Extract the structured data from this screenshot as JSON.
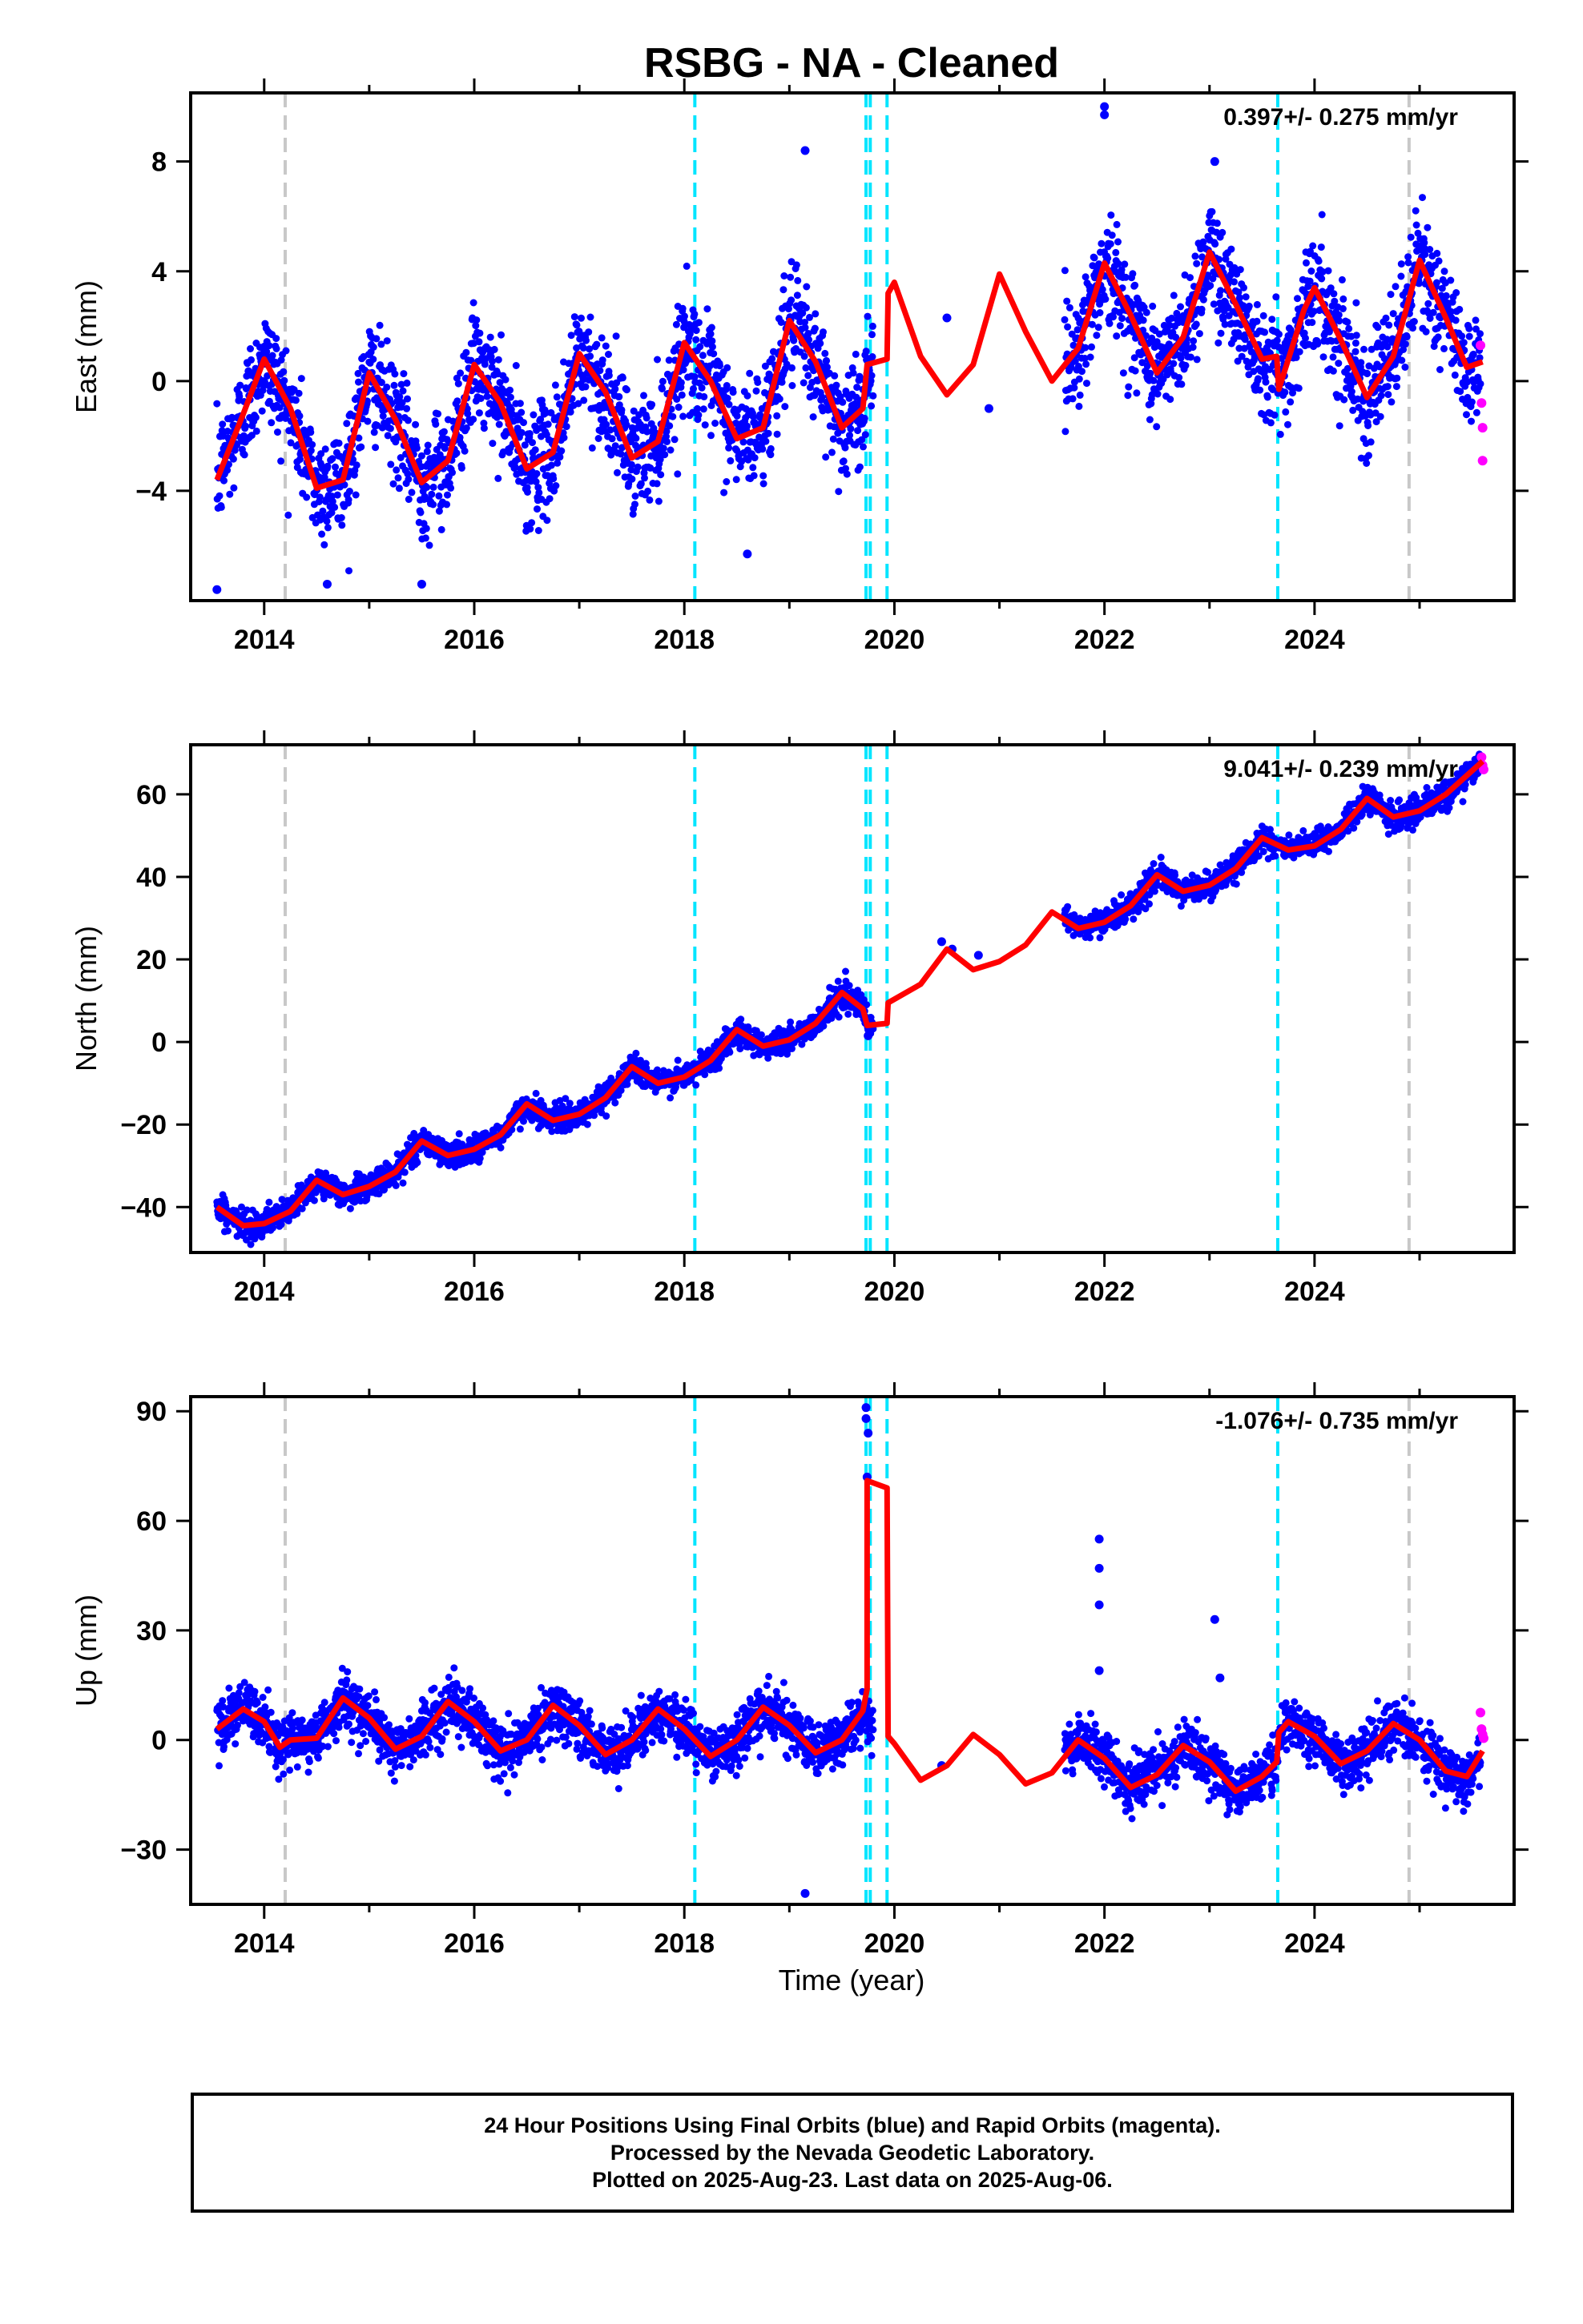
{
  "title": "RSBG  - NA - Cleaned",
  "xlabel": "Time (year)",
  "x_ticks": [
    2014,
    2016,
    2018,
    2020,
    2022,
    2024
  ],
  "colors": {
    "final_orbits": "#0000ff",
    "rapid_orbits": "#ff00ff",
    "model": "#ff0000",
    "equipment_change": "#00e5ff",
    "earthquake": "#c8c8c8"
  },
  "footer": {
    "line1": "24 Hour Positions Using Final Orbits (blue) and Rapid Orbits (magenta).",
    "line2": "Processed by the Nevada Geodetic Laboratory.",
    "line3": "Plotted on 2025-Aug-23. Last data on 2025-Aug-06."
  },
  "chart_data": [
    {
      "type": "scatter",
      "component": "East",
      "ylabel": "East (mm)",
      "rate_label": "0.397+/- 0.275 mm/yr",
      "xlim": [
        2013.3,
        2025.9
      ],
      "ylim": [
        -8,
        10.5
      ],
      "y_ticks": [
        -4,
        0,
        4,
        8
      ],
      "vlines_gray": [
        2014.2,
        2024.9
      ],
      "vlines_cyan": [
        2018.1,
        2019.73,
        2019.77,
        2019.93,
        2023.65
      ],
      "model": [
        [
          2013.55,
          -3.6
        ],
        [
          2013.8,
          -1.2
        ],
        [
          2014.0,
          0.8
        ],
        [
          2014.25,
          -1.0
        ],
        [
          2014.5,
          -3.9
        ],
        [
          2014.75,
          -3.6
        ],
        [
          2015.0,
          0.3
        ],
        [
          2015.25,
          -1.4
        ],
        [
          2015.5,
          -3.7
        ],
        [
          2015.75,
          -2.9
        ],
        [
          2016.0,
          0.6
        ],
        [
          2016.25,
          -0.8
        ],
        [
          2016.5,
          -3.2
        ],
        [
          2016.75,
          -2.6
        ],
        [
          2017.0,
          1.0
        ],
        [
          2017.25,
          -0.4
        ],
        [
          2017.5,
          -2.8
        ],
        [
          2017.75,
          -2.2
        ],
        [
          2018.0,
          1.4
        ],
        [
          2018.25,
          0.0
        ],
        [
          2018.5,
          -2.1
        ],
        [
          2018.75,
          -1.7
        ],
        [
          2019.0,
          2.2
        ],
        [
          2019.25,
          0.7
        ],
        [
          2019.5,
          -1.7
        ],
        [
          2019.7,
          -1.0
        ],
        [
          2019.74,
          0.6
        ],
        [
          2019.93,
          0.8
        ],
        [
          2019.94,
          3.2
        ],
        [
          2020.0,
          3.6
        ],
        [
          2020.25,
          0.9
        ],
        [
          2020.5,
          -0.5
        ],
        [
          2020.75,
          0.6
        ],
        [
          2021.0,
          3.9
        ],
        [
          2021.25,
          1.8
        ],
        [
          2021.5,
          0.0
        ],
        [
          2021.75,
          1.2
        ],
        [
          2022.0,
          4.3
        ],
        [
          2022.25,
          2.4
        ],
        [
          2022.5,
          0.3
        ],
        [
          2022.75,
          1.6
        ],
        [
          2023.0,
          4.7
        ],
        [
          2023.25,
          2.8
        ],
        [
          2023.5,
          0.8
        ],
        [
          2023.64,
          0.9
        ],
        [
          2023.66,
          -0.3
        ],
        [
          2023.9,
          2.6
        ],
        [
          2024.0,
          3.4
        ],
        [
          2024.25,
          1.5
        ],
        [
          2024.5,
          -0.6
        ],
        [
          2024.75,
          0.9
        ],
        [
          2025.0,
          4.4
        ],
        [
          2025.25,
          2.3
        ],
        [
          2025.45,
          0.5
        ],
        [
          2025.6,
          0.7
        ]
      ],
      "rapid": [
        [
          2025.58,
          1.3
        ],
        [
          2025.59,
          -0.8
        ],
        [
          2025.6,
          -1.7
        ],
        [
          2025.6,
          -2.9
        ]
      ],
      "outliers": [
        [
          2013.55,
          -7.6
        ],
        [
          2014.6,
          -7.4
        ],
        [
          2015.5,
          -7.4
        ],
        [
          2019.15,
          8.4
        ],
        [
          2020.5,
          2.3
        ],
        [
          2020.9,
          -1.0
        ],
        [
          2022.0,
          10.0
        ],
        [
          2022.0,
          9.7
        ],
        [
          2023.05,
          8.0
        ],
        [
          2018.6,
          -6.3
        ]
      ]
    },
    {
      "type": "scatter",
      "component": "North",
      "ylabel": "North (mm)",
      "rate_label": "9.041+/- 0.239 mm/yr",
      "xlim": [
        2013.3,
        2025.9
      ],
      "ylim": [
        -51,
        72
      ],
      "y_ticks": [
        -40,
        -20,
        0,
        20,
        40,
        60
      ],
      "vlines_gray": [
        2014.2,
        2024.9
      ],
      "vlines_cyan": [
        2018.1,
        2019.73,
        2019.77,
        2019.93,
        2023.65
      ],
      "model": [
        [
          2013.55,
          -40.0
        ],
        [
          2013.8,
          -44.5
        ],
        [
          2014.0,
          -44.0
        ],
        [
          2014.25,
          -41.0
        ],
        [
          2014.5,
          -33.5
        ],
        [
          2014.75,
          -37.0
        ],
        [
          2015.0,
          -35.0
        ],
        [
          2015.25,
          -31.5
        ],
        [
          2015.5,
          -24.0
        ],
        [
          2015.75,
          -27.5
        ],
        [
          2016.0,
          -26.0
        ],
        [
          2016.25,
          -22.5
        ],
        [
          2016.5,
          -15.0
        ],
        [
          2016.75,
          -19.0
        ],
        [
          2017.0,
          -17.5
        ],
        [
          2017.25,
          -13.5
        ],
        [
          2017.5,
          -6.0
        ],
        [
          2017.75,
          -10.0
        ],
        [
          2018.0,
          -8.5
        ],
        [
          2018.25,
          -4.5
        ],
        [
          2018.5,
          3.0
        ],
        [
          2018.75,
          -1.0
        ],
        [
          2019.0,
          0.5
        ],
        [
          2019.25,
          4.5
        ],
        [
          2019.5,
          12.0
        ],
        [
          2019.7,
          8.0
        ],
        [
          2019.74,
          4.0
        ],
        [
          2019.93,
          4.5
        ],
        [
          2019.94,
          9.5
        ],
        [
          2020.25,
          14.0
        ],
        [
          2020.5,
          22.5
        ],
        [
          2020.75,
          17.5
        ],
        [
          2021.0,
          19.5
        ],
        [
          2021.25,
          23.5
        ],
        [
          2021.5,
          31.5
        ],
        [
          2021.75,
          27.5
        ],
        [
          2022.0,
          29.0
        ],
        [
          2022.25,
          33.0
        ],
        [
          2022.5,
          40.5
        ],
        [
          2022.75,
          36.5
        ],
        [
          2023.0,
          38.0
        ],
        [
          2023.25,
          42.0
        ],
        [
          2023.5,
          49.5
        ],
        [
          2023.75,
          46.5
        ],
        [
          2024.0,
          47.5
        ],
        [
          2024.25,
          51.5
        ],
        [
          2024.5,
          59.0
        ],
        [
          2024.75,
          54.5
        ],
        [
          2025.0,
          56.0
        ],
        [
          2025.25,
          60.0
        ],
        [
          2025.6,
          68.0
        ]
      ],
      "rapid": [
        [
          2025.59,
          69.0
        ],
        [
          2025.6,
          67.0
        ],
        [
          2025.61,
          66.0
        ]
      ],
      "outliers": [
        [
          2020.45,
          24.3
        ],
        [
          2020.55,
          22.5
        ],
        [
          2020.8,
          21.0
        ],
        [
          2019.75,
          1.5
        ]
      ]
    },
    {
      "type": "scatter",
      "component": "Up",
      "ylabel": "Up (mm)",
      "rate_label": "-1.076+/- 0.735 mm/yr",
      "xlim": [
        2013.3,
        2025.9
      ],
      "ylim": [
        -45,
        94
      ],
      "y_ticks": [
        -30,
        0,
        30,
        60,
        90
      ],
      "vlines_gray": [
        2014.2,
        2024.9
      ],
      "vlines_cyan": [
        2018.1,
        2019.73,
        2019.77,
        2019.93,
        2023.65
      ],
      "model": [
        [
          2013.55,
          3.0
        ],
        [
          2013.8,
          8.5
        ],
        [
          2014.0,
          5.0
        ],
        [
          2014.15,
          -2.0
        ],
        [
          2014.25,
          0.0
        ],
        [
          2014.5,
          0.5
        ],
        [
          2014.75,
          11.5
        ],
        [
          2015.0,
          6.0
        ],
        [
          2015.25,
          -2.5
        ],
        [
          2015.5,
          1.0
        ],
        [
          2015.75,
          10.5
        ],
        [
          2016.0,
          5.0
        ],
        [
          2016.25,
          -3.0
        ],
        [
          2016.5,
          0.0
        ],
        [
          2016.75,
          9.5
        ],
        [
          2017.0,
          4.0
        ],
        [
          2017.25,
          -4.0
        ],
        [
          2017.5,
          0.0
        ],
        [
          2017.75,
          8.5
        ],
        [
          2018.0,
          3.0
        ],
        [
          2018.25,
          -4.5
        ],
        [
          2018.5,
          0.0
        ],
        [
          2018.75,
          9.0
        ],
        [
          2019.0,
          4.0
        ],
        [
          2019.25,
          -3.5
        ],
        [
          2019.5,
          0.0
        ],
        [
          2019.7,
          8.0
        ],
        [
          2019.74,
          14.0
        ],
        [
          2019.74,
          71.0
        ],
        [
          2019.93,
          69.0
        ],
        [
          2019.94,
          1.0
        ],
        [
          2020.0,
          -1.0
        ],
        [
          2020.25,
          -11.0
        ],
        [
          2020.5,
          -7.0
        ],
        [
          2020.75,
          1.5
        ],
        [
          2021.0,
          -4.0
        ],
        [
          2021.25,
          -12.0
        ],
        [
          2021.5,
          -9.0
        ],
        [
          2021.75,
          0.0
        ],
        [
          2022.0,
          -5.0
        ],
        [
          2022.25,
          -13.0
        ],
        [
          2022.5,
          -9.5
        ],
        [
          2022.75,
          -1.5
        ],
        [
          2023.0,
          -6.0
        ],
        [
          2023.25,
          -14.0
        ],
        [
          2023.5,
          -10.0
        ],
        [
          2023.64,
          -6.0
        ],
        [
          2023.66,
          2.0
        ],
        [
          2023.75,
          5.0
        ],
        [
          2024.0,
          1.0
        ],
        [
          2024.25,
          -6.5
        ],
        [
          2024.5,
          -3.0
        ],
        [
          2024.75,
          4.5
        ],
        [
          2025.0,
          0.0
        ],
        [
          2025.25,
          -8.5
        ],
        [
          2025.45,
          -10.0
        ],
        [
          2025.6,
          -3.0
        ]
      ],
      "rapid": [
        [
          2025.58,
          7.5
        ],
        [
          2025.59,
          3.0
        ],
        [
          2025.6,
          1.5
        ],
        [
          2025.61,
          0.5
        ]
      ],
      "outliers": [
        [
          2019.73,
          91.0
        ],
        [
          2019.73,
          88.0
        ],
        [
          2019.75,
          84.0
        ],
        [
          2019.74,
          72.0
        ],
        [
          2021.95,
          55.0
        ],
        [
          2021.95,
          47.0
        ],
        [
          2021.95,
          37.0
        ],
        [
          2023.05,
          33.0
        ],
        [
          2023.1,
          17.0
        ],
        [
          2019.15,
          -42.0
        ],
        [
          2020.45,
          -7.0
        ],
        [
          2021.95,
          19.0
        ]
      ]
    }
  ]
}
